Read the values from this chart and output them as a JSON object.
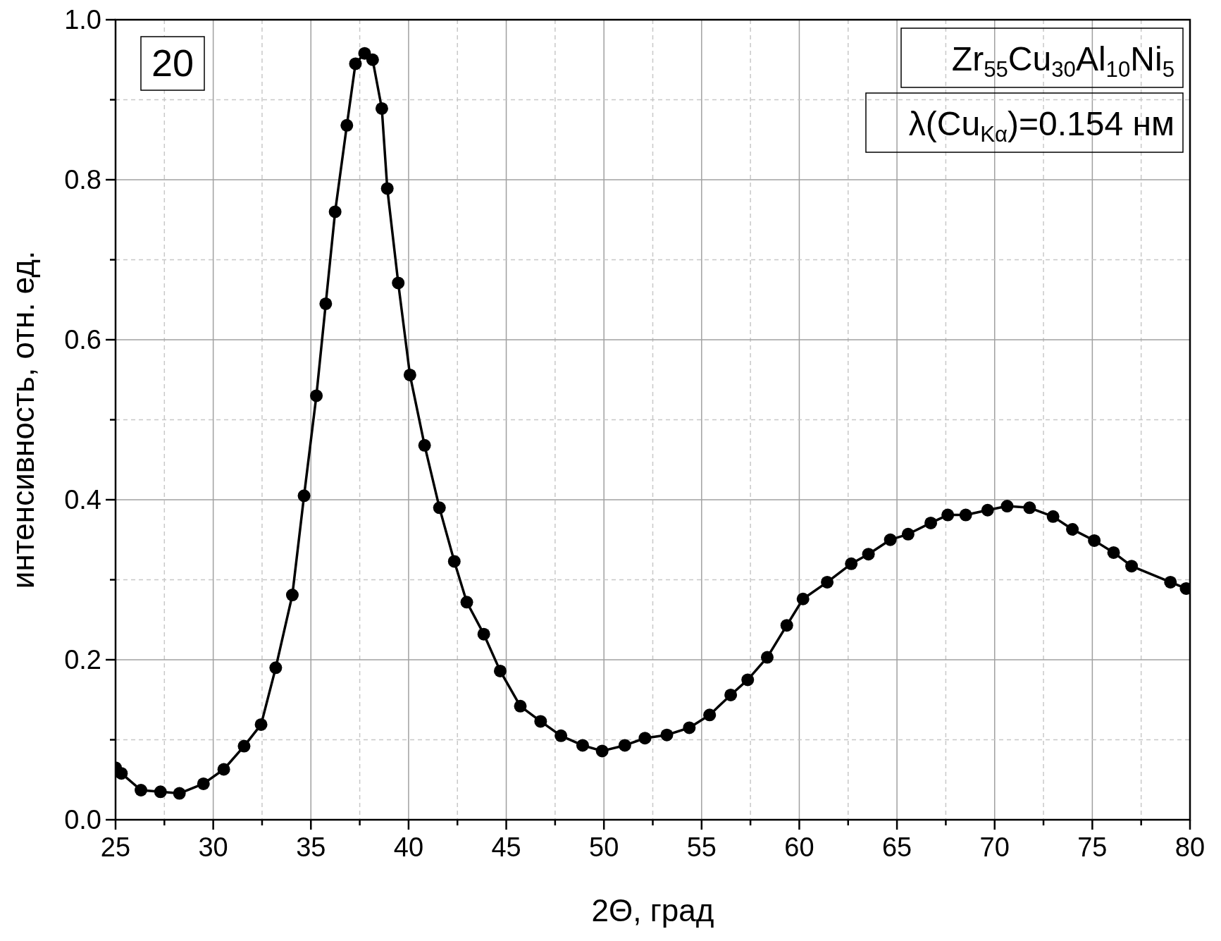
{
  "chart_data": {
    "type": "line",
    "xlabel": "2Θ, град",
    "ylabel": "интенсивность, отн. ед.",
    "annotations": [
      "20",
      "Zr$_{55}$Cu$_{30}$Al$_{10}$Ni$_{5}$",
      "λ(Cu$_{Kα}$)=0.154 нм"
    ],
    "x": [
      25.0,
      25.3,
      26.3,
      27.3,
      28.27,
      29.5,
      30.54,
      31.58,
      32.45,
      33.2,
      34.05,
      34.65,
      35.28,
      35.76,
      36.24,
      36.84,
      37.28,
      37.75,
      38.16,
      38.63,
      38.91,
      39.47,
      40.07,
      40.82,
      41.58,
      42.34,
      42.98,
      43.85,
      44.69,
      45.72,
      46.76,
      47.8,
      48.91,
      49.91,
      51.07,
      52.1,
      53.22,
      54.37,
      55.41,
      56.49,
      57.36,
      58.36,
      59.36,
      60.19,
      61.43,
      62.66,
      63.54,
      64.66,
      65.57,
      66.73,
      67.6,
      68.52,
      69.64,
      70.64,
      71.79,
      72.99,
      73.98,
      75.1,
      76.09,
      77.01,
      79.0,
      79.8
    ],
    "series": [
      {
        "color": "#000000",
        "values": [
          0.065,
          0.058,
          0.037,
          0.035,
          0.033,
          0.045,
          0.063,
          0.092,
          0.119,
          0.19,
          0.281,
          0.405,
          0.53,
          0.645,
          0.76,
          0.868,
          0.945,
          0.958,
          0.95,
          0.889,
          0.789,
          0.671,
          0.556,
          0.468,
          0.39,
          0.323,
          0.272,
          0.232,
          0.186,
          0.142,
          0.123,
          0.105,
          0.093,
          0.086,
          0.093,
          0.102,
          0.106,
          0.115,
          0.131,
          0.156,
          0.175,
          0.203,
          0.243,
          0.276,
          0.297,
          0.32,
          0.332,
          0.35,
          0.357,
          0.371,
          0.381,
          0.381,
          0.387,
          0.392,
          0.39,
          0.379,
          0.363,
          0.349,
          0.334,
          0.317,
          0.297,
          0.289
        ]
      }
    ],
    "xlim": [
      25,
      80
    ],
    "xticks": [
      25,
      {
        "value": 27.5,
        "label": null
      },
      30,
      {
        "value": 32.5,
        "label": null
      },
      35,
      {
        "value": 37.5,
        "label": null
      },
      40,
      {
        "value": 42.5,
        "label": null
      },
      45,
      {
        "value": 47.5,
        "label": null
      },
      50,
      {
        "value": 52.5,
        "label": null
      },
      55,
      {
        "value": 57.5,
        "label": null
      },
      60,
      {
        "value": 62.5,
        "label": null
      },
      65,
      {
        "value": 67.5,
        "label": null
      },
      70,
      {
        "value": 72.5,
        "label": null
      },
      75,
      {
        "value": 77.5,
        "label": null
      },
      80
    ],
    "ylim": [
      0,
      1
    ],
    "yticks": [
      {
        "value": 0,
        "label": "0.0"
      },
      {
        "value": 0.1,
        "label": null
      },
      0.2,
      {
        "value": 0.3,
        "label": null
      },
      0.4,
      {
        "value": 0.5,
        "label": null
      },
      0.6,
      {
        "value": 0.7,
        "label": null
      },
      0.8,
      {
        "value": 0.9,
        "label": null
      },
      {
        "value": 1,
        "label": "1.0"
      }
    ],
    "grid": true,
    "marker": "circle",
    "line_style": "solid"
  }
}
